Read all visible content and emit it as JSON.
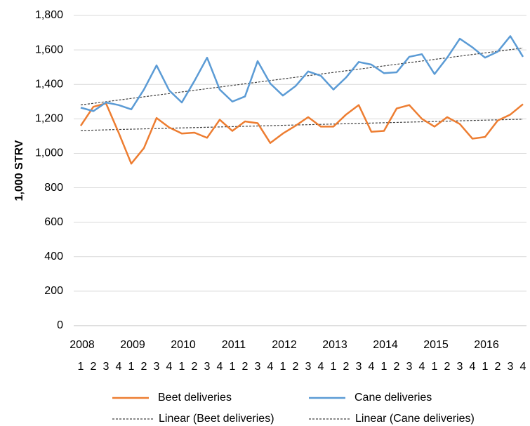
{
  "chart_data": {
    "type": "line",
    "y_label": "1,000 STRV",
    "categories": [
      "1",
      "2",
      "3",
      "4",
      "1",
      "2",
      "3",
      "4",
      "1",
      "2",
      "3",
      "4",
      "1",
      "2",
      "3",
      "4",
      "1",
      "2",
      "3",
      "4",
      "1",
      "2",
      "3",
      "4",
      "1",
      "2",
      "3",
      "4",
      "1",
      "2",
      "3",
      "4",
      "1",
      "2",
      "3",
      "4"
    ],
    "years": [
      "2008",
      "2009",
      "2010",
      "2011",
      "2012",
      "2013",
      "2014",
      "2015",
      "2016"
    ],
    "series": [
      {
        "name": "Beet deliveries",
        "trend_name": "Linear (Beet deliveries)",
        "color": "#ed7d31",
        "values": [
          1160,
          1270,
          1290,
          1120,
          940,
          1030,
          1205,
          1150,
          1115,
          1120,
          1090,
          1195,
          1130,
          1185,
          1175,
          1060,
          1115,
          1160,
          1210,
          1155,
          1155,
          1225,
          1280,
          1125,
          1130,
          1260,
          1280,
          1200,
          1155,
          1210,
          1170,
          1085,
          1095,
          1190,
          1225,
          1285
        ]
      },
      {
        "name": "Cane deliveries",
        "trend_name": "Linear (Cane deliveries)",
        "color": "#5b9bd5",
        "values": [
          1265,
          1245,
          1295,
          1280,
          1255,
          1370,
          1510,
          1365,
          1295,
          1420,
          1555,
          1370,
          1300,
          1330,
          1535,
          1405,
          1335,
          1390,
          1475,
          1450,
          1370,
          1440,
          1530,
          1515,
          1465,
          1470,
          1560,
          1575,
          1460,
          1555,
          1665,
          1615,
          1555,
          1590,
          1680,
          1560
        ]
      }
    ],
    "ylim": [
      0,
      1800
    ],
    "yticks": [
      0,
      200,
      400,
      600,
      800,
      {
        "value": 1000,
        "label": "1,000"
      },
      {
        "value": 1200,
        "label": "1,200"
      },
      {
        "value": 1400,
        "label": "1,400"
      },
      {
        "value": 1600,
        "label": "1,600"
      },
      {
        "value": 1800,
        "label": "1,800"
      }
    ],
    "grid": true,
    "trendline_color": "#404040"
  }
}
